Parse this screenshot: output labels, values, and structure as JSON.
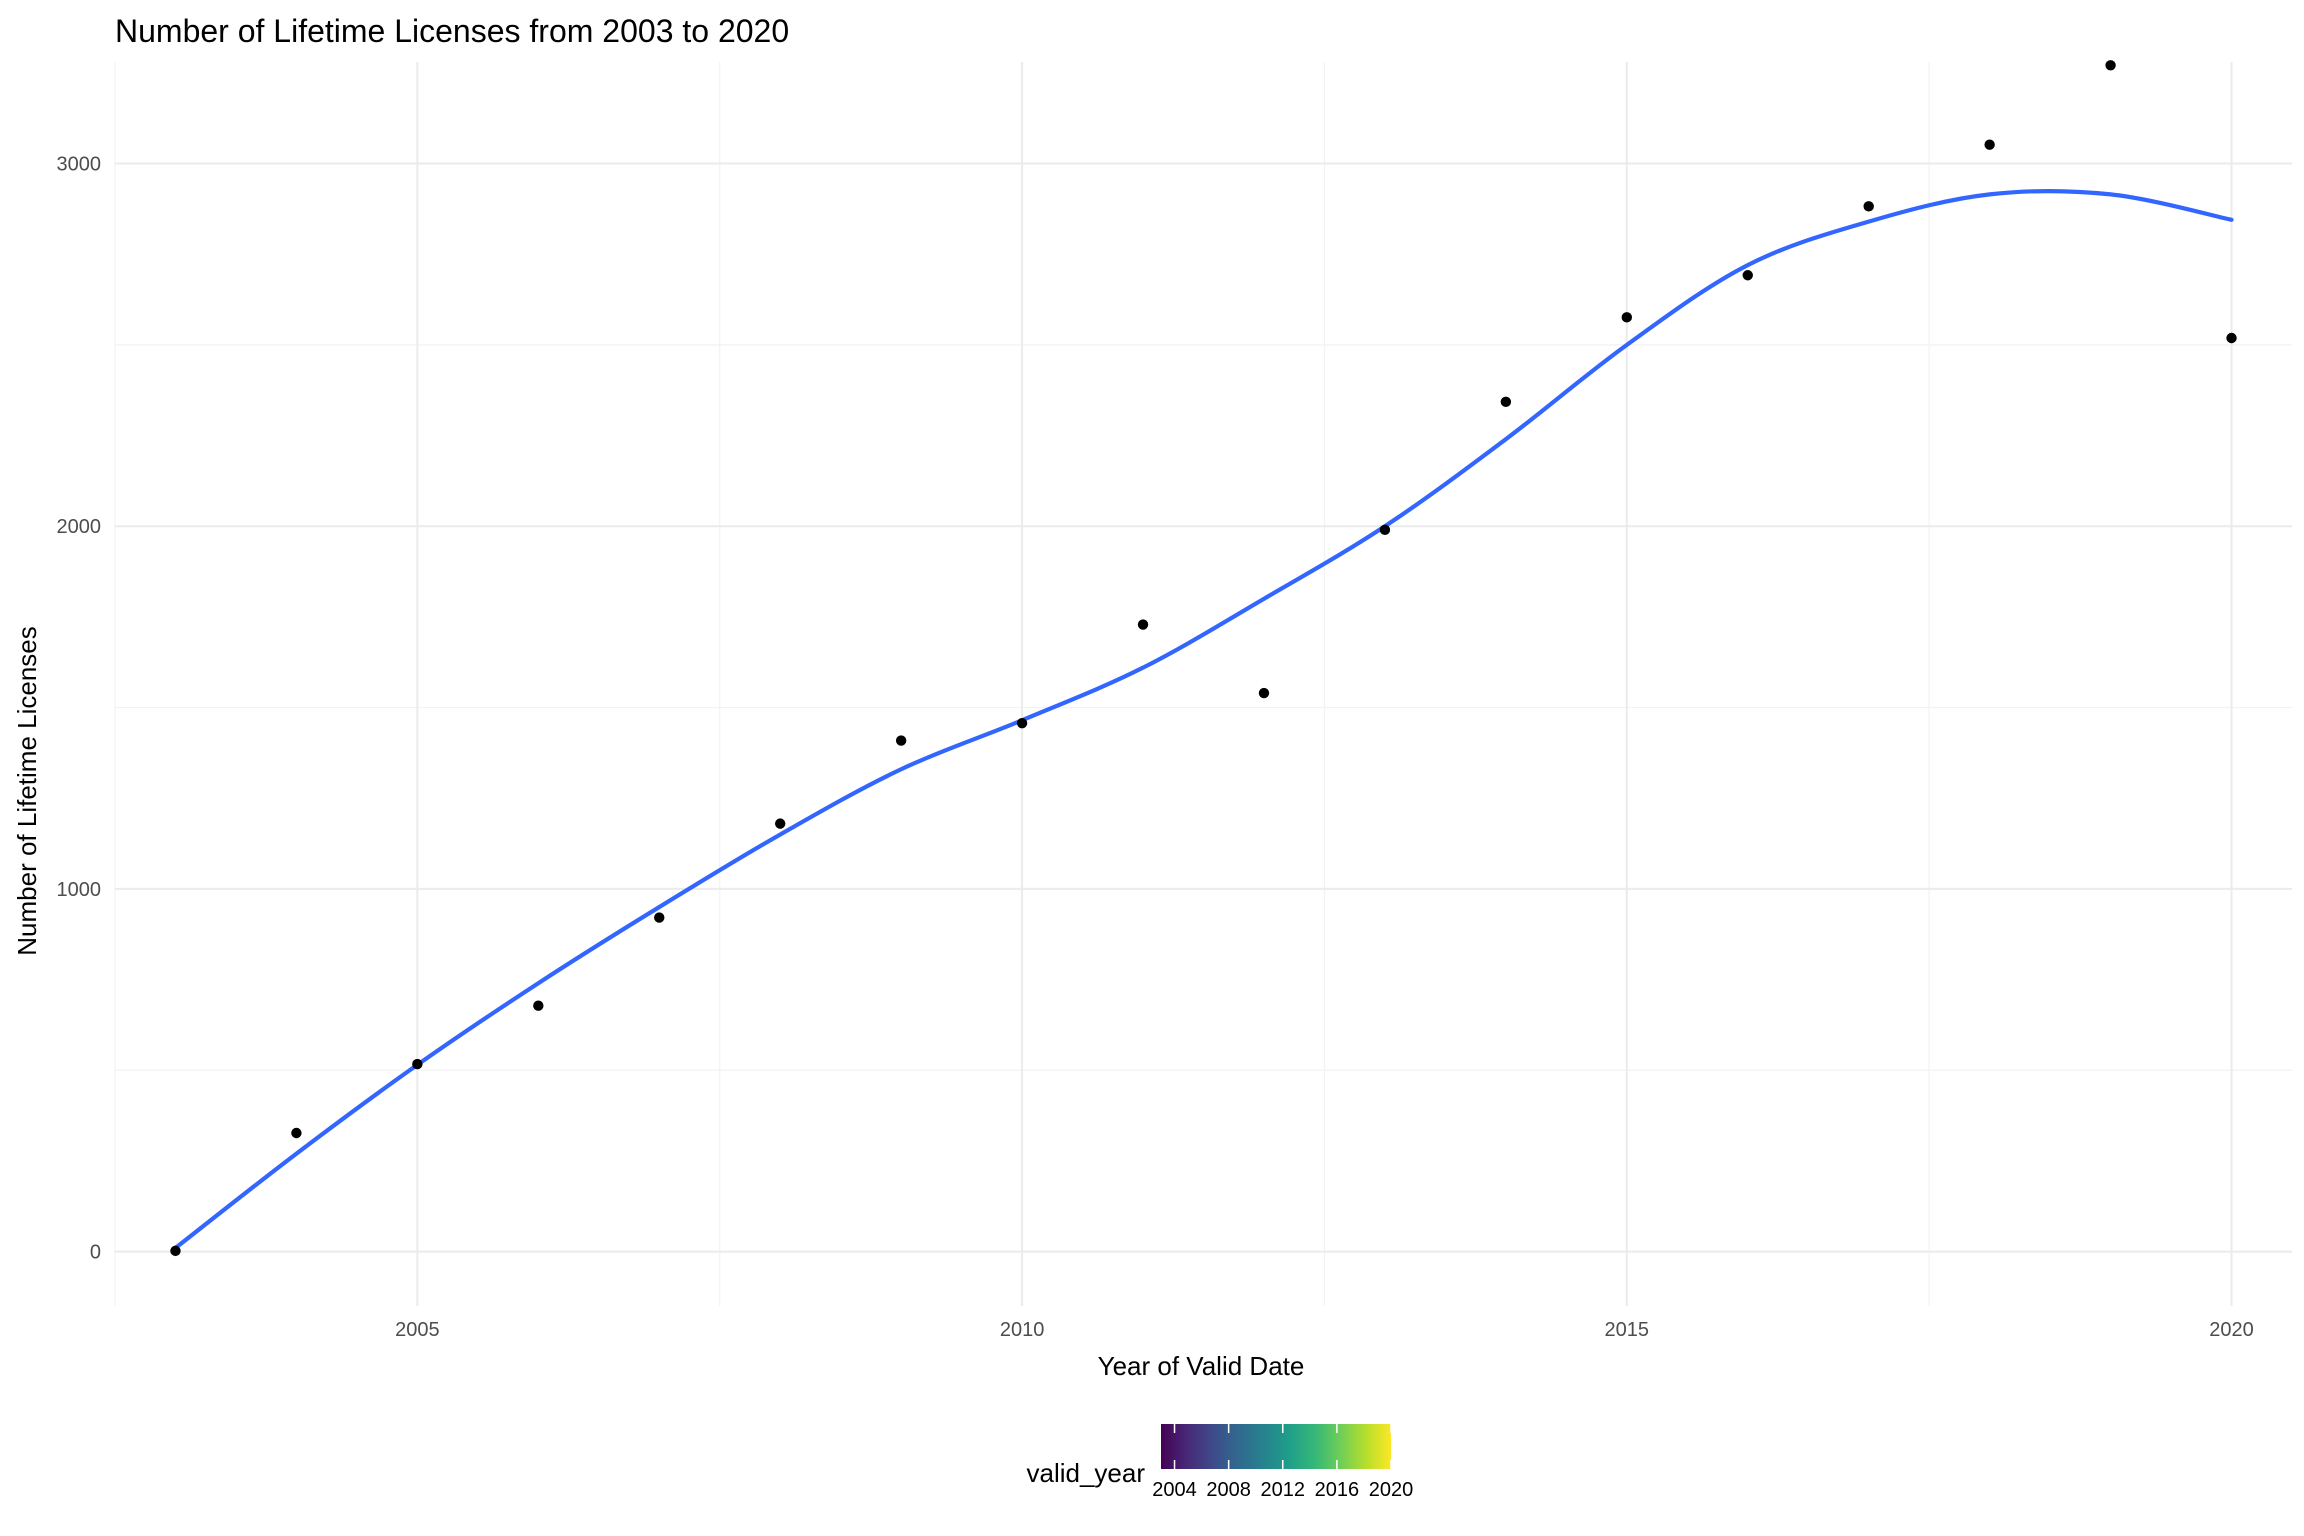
{
  "chart_data": {
    "type": "scatter",
    "title": "Number of Lifetime Licenses from 2003 to 2020",
    "xlabel": "Year of Valid Date",
    "ylabel": "Number of Lifetime Licenses",
    "xlim": [
      2002.5,
      2020.5
    ],
    "ylim": [
      -150,
      3280
    ],
    "x_ticks": [
      2005,
      2010,
      2015,
      2020
    ],
    "x_tick_labels": [
      "2005",
      "2010",
      "2015",
      "2020"
    ],
    "y_ticks": [
      0,
      1000,
      2000,
      3000
    ],
    "y_tick_labels": [
      "0",
      "1000",
      "2000",
      "3000"
    ],
    "grid": true,
    "points": {
      "x": [
        2003,
        2004,
        2005,
        2006,
        2007,
        2008,
        2009,
        2010,
        2011,
        2012,
        2013,
        2014,
        2015,
        2016,
        2017,
        2018,
        2019,
        2020
      ],
      "y": [
        2,
        327,
        517,
        678,
        921,
        1180,
        1409,
        1457,
        1729,
        1540,
        1990,
        2343,
        2576,
        2692,
        2882,
        3052,
        3271,
        2519
      ],
      "color": "#000000"
    },
    "smooth": {
      "x": [
        2003,
        2004,
        2005,
        2006,
        2007,
        2008,
        2009,
        2010,
        2011,
        2012,
        2013,
        2014,
        2015,
        2016,
        2017,
        2018,
        2019,
        2020
      ],
      "y": [
        10,
        270,
        515,
        740,
        950,
        1150,
        1330,
        1465,
        1610,
        1800,
        2000,
        2240,
        2500,
        2720,
        2840,
        2915,
        2915,
        2845
      ],
      "color": "#3366FF"
    },
    "legend": {
      "title": "valid_year",
      "position": "bottom",
      "colorbar_range": [
        2003,
        2020
      ],
      "tick_values": [
        2004,
        2008,
        2012,
        2016,
        2020
      ],
      "tick_labels": [
        "2004",
        "2008",
        "2012",
        "2016",
        "2020"
      ],
      "colormap": "viridis",
      "colors": [
        "#440154",
        "#482878",
        "#3E4A89",
        "#31688E",
        "#26828E",
        "#1F9E89",
        "#35B779",
        "#6DCD59",
        "#B4DE2C",
        "#FDE725"
      ]
    }
  }
}
